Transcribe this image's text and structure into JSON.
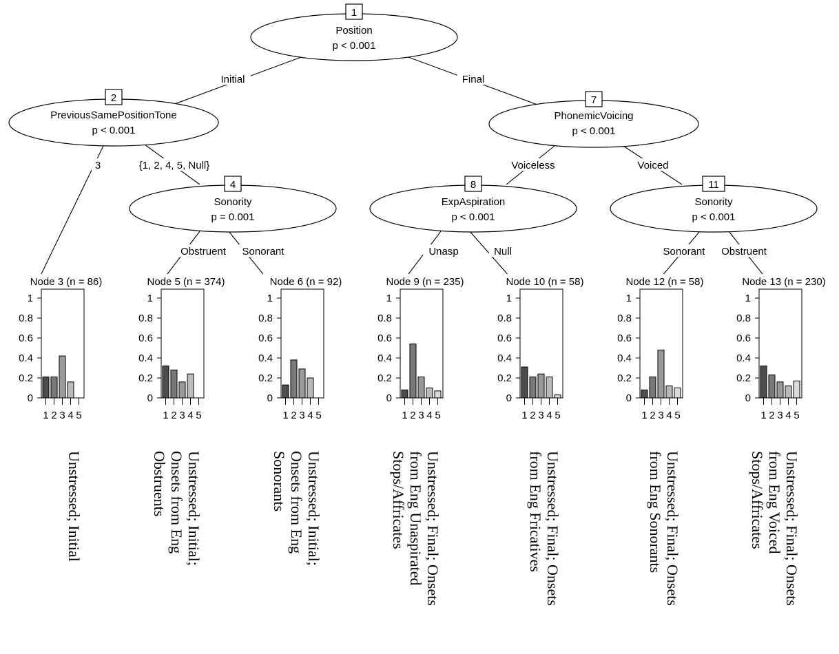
{
  "inner_nodes": [
    {
      "id": "1",
      "variable": "Position",
      "p": "p < 0.001"
    },
    {
      "id": "2",
      "variable": "PreviousSamePositionTone",
      "p": "p < 0.001"
    },
    {
      "id": "4",
      "variable": "Sonority",
      "p": "p = 0.001"
    },
    {
      "id": "7",
      "variable": "PhonemicVoicing",
      "p": "p < 0.001"
    },
    {
      "id": "8",
      "variable": "ExpAspiration",
      "p": "p < 0.001"
    },
    {
      "id": "11",
      "variable": "Sonority",
      "p": "p < 0.001"
    }
  ],
  "edges": [
    {
      "label": "Initial"
    },
    {
      "label": "Final"
    },
    {
      "label": "3"
    },
    {
      "label": "{1, 2, 4, 5, Null}"
    },
    {
      "label": "Voiceless"
    },
    {
      "label": "Voiced"
    },
    {
      "label": "Obstruent"
    },
    {
      "label": "Sonorant"
    },
    {
      "label": "Unasp"
    },
    {
      "label": "Null"
    },
    {
      "label": "Sonorant"
    },
    {
      "label": "Obstruent"
    }
  ],
  "y_ticks": [
    "1",
    "0.8",
    "0.6",
    "0.4",
    "0.2",
    "0"
  ],
  "x_ticks": [
    "1",
    "2",
    "3",
    "4",
    "5"
  ],
  "bar_colors": [
    "#4d4d4d",
    "#787878",
    "#9a9a9a",
    "#bababa",
    "#dadada"
  ],
  "terminal_nodes": [
    {
      "title": "Node 3 (n = 86)",
      "values": [
        0.21,
        0.21,
        0.42,
        0.16,
        0.0
      ],
      "annotation": [
        "Unstressed; Initial"
      ]
    },
    {
      "title": "Node 5 (n = 374)",
      "values": [
        0.32,
        0.28,
        0.16,
        0.24,
        0.0
      ],
      "annotation": [
        "Unstressed; Initial;",
        "Onsets from Eng",
        "Obstruents"
      ]
    },
    {
      "title": "Node 6 (n = 92)",
      "values": [
        0.13,
        0.38,
        0.29,
        0.2,
        0.0
      ],
      "annotation": [
        "Unstressed; Initial;",
        "Onsets from Eng",
        "Sonorants"
      ]
    },
    {
      "title": "Node 9 (n = 235)",
      "values": [
        0.08,
        0.54,
        0.21,
        0.1,
        0.07
      ],
      "annotation": [
        "Unstressed; Final; Onsets",
        "from Eng Unaspirated",
        "Stops/Affricates"
      ]
    },
    {
      "title": "Node 10 (n = 58)",
      "values": [
        0.31,
        0.21,
        0.24,
        0.21,
        0.03
      ],
      "annotation": [
        "Unstressed; Final; Onsets",
        "from Eng Fricatives"
      ]
    },
    {
      "title": "Node 12 (n = 58)",
      "values": [
        0.08,
        0.21,
        0.48,
        0.12,
        0.1
      ],
      "annotation": [
        "Unstressed; Final; Onsets",
        "from Eng Sonorants"
      ]
    },
    {
      "title": "Node 13 (n = 230)",
      "values": [
        0.32,
        0.23,
        0.16,
        0.12,
        0.17
      ],
      "annotation": [
        "Unstressed; Final; Onsets",
        "from Eng Voiced",
        "Stops/Affricates"
      ]
    }
  ]
}
